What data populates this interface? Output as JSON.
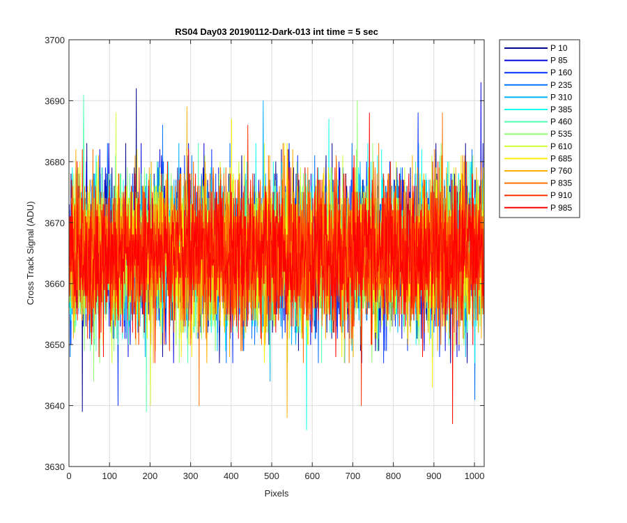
{
  "chart_data": {
    "type": "line",
    "title": "RS04 Day03 20190112-Dark-013 int time = 5 sec",
    "xlabel": "Pixels",
    "ylabel": "Cross Track Signal (ADU)",
    "xlim": [
      0,
      1024
    ],
    "ylim": [
      3630,
      3700
    ],
    "xticks": [
      0,
      100,
      200,
      300,
      400,
      500,
      600,
      700,
      800,
      900,
      1000
    ],
    "yticks": [
      3630,
      3640,
      3650,
      3660,
      3670,
      3680,
      3690,
      3700
    ],
    "grid": true,
    "legend_position": "outside-top-right",
    "x_count": 1024,
    "noise_center": 3665,
    "noise_sigma": 6,
    "series": [
      {
        "name": "P 10",
        "color": "#00008f",
        "extremes": [
          {
            "x": 32,
            "y": 3639
          },
          {
            "x": 165,
            "y": 3692
          }
        ]
      },
      {
        "name": "P 85",
        "color": "#0000df",
        "extremes": [
          {
            "x": 1015,
            "y": 3693
          },
          {
            "x": 145,
            "y": 3648
          }
        ]
      },
      {
        "name": "P 160",
        "color": "#0030ff",
        "extremes": [
          {
            "x": 120,
            "y": 3640
          },
          {
            "x": 860,
            "y": 3688
          }
        ]
      },
      {
        "name": "P 235",
        "color": "#0070ff",
        "extremes": [
          {
            "x": 1000,
            "y": 3641
          },
          {
            "x": 230,
            "y": 3686
          }
        ]
      },
      {
        "name": "P 310",
        "color": "#00b0ff",
        "extremes": [
          {
            "x": 495,
            "y": 3644
          },
          {
            "x": 478,
            "y": 3690
          }
        ]
      },
      {
        "name": "P 385",
        "color": "#10ffef",
        "extremes": [
          {
            "x": 585,
            "y": 3636
          },
          {
            "x": 640,
            "y": 3687
          }
        ]
      },
      {
        "name": "P 460",
        "color": "#50ffaf",
        "extremes": [
          {
            "x": 190,
            "y": 3639
          },
          {
            "x": 35,
            "y": 3691
          }
        ]
      },
      {
        "name": "P 535",
        "color": "#90ff6f",
        "extremes": [
          {
            "x": 710,
            "y": 3690
          },
          {
            "x": 60,
            "y": 3644
          }
        ]
      },
      {
        "name": "P 610",
        "color": "#cfff30",
        "extremes": [
          {
            "x": 200,
            "y": 3640
          },
          {
            "x": 115,
            "y": 3688
          }
        ]
      },
      {
        "name": "P 685",
        "color": "#ffef00",
        "extremes": [
          {
            "x": 895,
            "y": 3643
          },
          {
            "x": 400,
            "y": 3687
          }
        ]
      },
      {
        "name": "P 760",
        "color": "#ffb000",
        "extremes": [
          {
            "x": 537,
            "y": 3638
          },
          {
            "x": 290,
            "y": 3689
          }
        ]
      },
      {
        "name": "P 835",
        "color": "#ff7000",
        "extremes": [
          {
            "x": 320,
            "y": 3640
          },
          {
            "x": 920,
            "y": 3688
          }
        ]
      },
      {
        "name": "P 910",
        "color": "#ff3000",
        "extremes": [
          {
            "x": 720,
            "y": 3640
          },
          {
            "x": 440,
            "y": 3686
          }
        ]
      },
      {
        "name": "P 985",
        "color": "#ff0000",
        "extremes": [
          {
            "x": 945,
            "y": 3637
          },
          {
            "x": 740,
            "y": 3688
          }
        ]
      }
    ]
  }
}
